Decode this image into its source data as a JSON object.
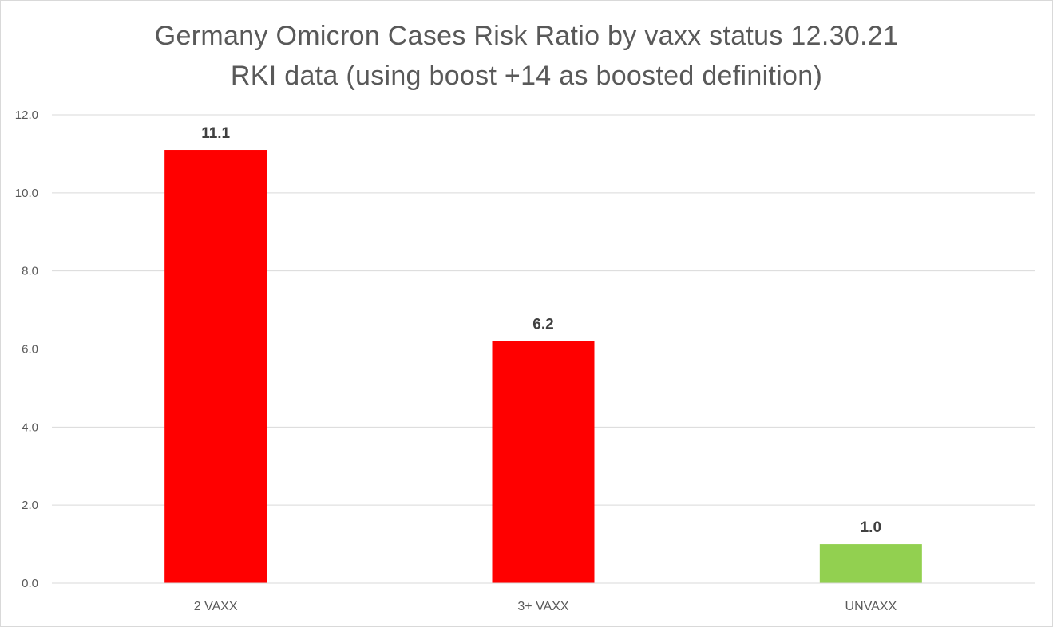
{
  "chart_data": {
    "type": "bar",
    "title": "Germany Omicron Cases Risk Ratio by vaxx status 12.30.21",
    "subtitle": "RKI data (using boost +14 as boosted definition)",
    "categories": [
      "2 VAXX",
      "3+ VAXX",
      "UNVAXX"
    ],
    "values": [
      11.1,
      6.2,
      1.0
    ],
    "data_labels": [
      "11.1",
      "6.2",
      "1.0"
    ],
    "bar_colors": [
      "#ff0000",
      "#ff0000",
      "#92d050"
    ],
    "xlabel": "",
    "ylabel": "",
    "ylim": [
      0,
      12
    ],
    "y_ticks": [
      0,
      2,
      4,
      6,
      8,
      10,
      12
    ],
    "y_tick_labels": [
      "0.0",
      "2.0",
      "4.0",
      "6.0",
      "8.0",
      "10.0",
      "12.0"
    ],
    "grid": true,
    "legend": "none"
  }
}
